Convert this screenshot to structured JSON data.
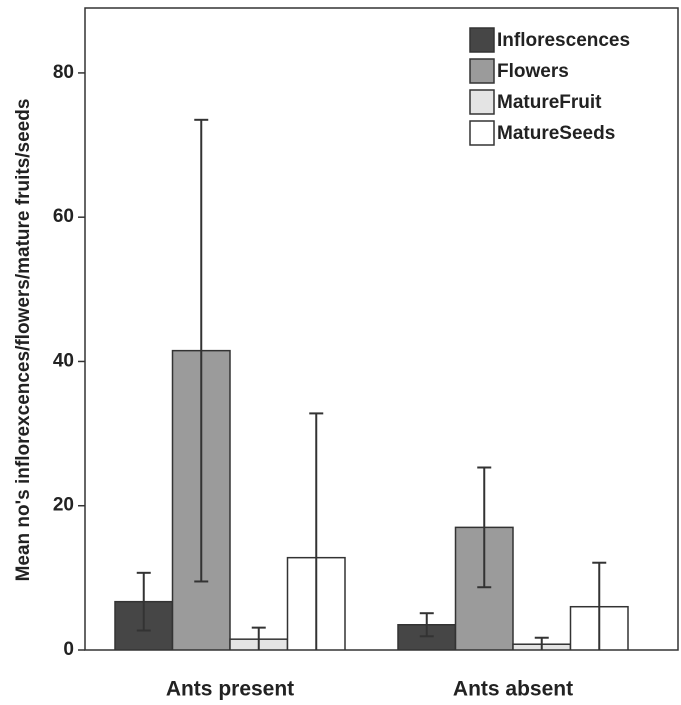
{
  "chart_data": {
    "type": "bar",
    "y_label": "Mean no's inflorexcences/flowers/mature fruits/seeds",
    "categories": [
      "Ants present",
      "Ants absent"
    ],
    "series": [
      {
        "name": "Inflorescences",
        "color": "#464646",
        "values": [
          6.7,
          3.5
        ],
        "errors": [
          4.0,
          1.6
        ]
      },
      {
        "name": "Flowers",
        "color": "#9b9b9b",
        "values": [
          41.5,
          17.0
        ],
        "errors": [
          32.0,
          8.3
        ]
      },
      {
        "name": "MatureFruit",
        "color": "#e4e4e4",
        "values": [
          1.5,
          0.8
        ],
        "errors": [
          1.6,
          0.9
        ]
      },
      {
        "name": "MatureSeeds",
        "color": "#ffffff",
        "values": [
          12.8,
          6.0
        ],
        "errors": [
          20.0,
          6.1
        ]
      }
    ],
    "ylim": [
      0,
      89
    ],
    "yticks": [
      0,
      20,
      40,
      60,
      80
    ],
    "legend": "top-right"
  }
}
